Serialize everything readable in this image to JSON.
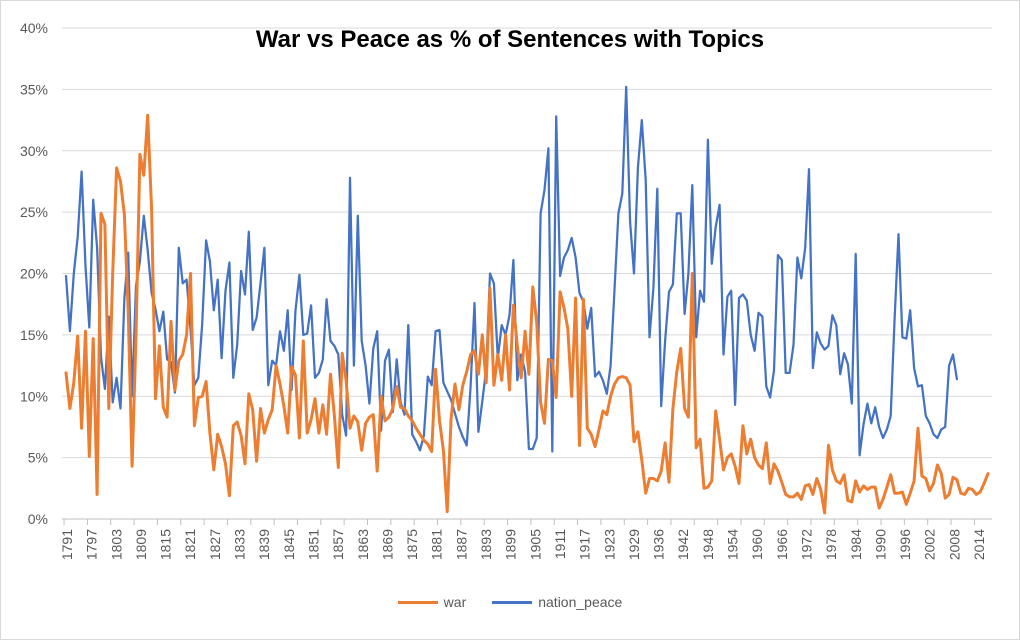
{
  "chart_data": {
    "type": "line",
    "title": "War vs Peace as % of Sentences with Topics",
    "xlabel": "",
    "ylabel": "",
    "ylim": [
      0,
      40
    ],
    "y_ticks": [
      "0%",
      "5%",
      "10%",
      "15%",
      "20%",
      "25%",
      "30%",
      "35%",
      "40%"
    ],
    "x_tick_labels": [
      "1791",
      "1797",
      "1803",
      "1809",
      "1815",
      "1821",
      "1827",
      "1833",
      "1839",
      "1845",
      "1851",
      "1857",
      "1863",
      "1869",
      "1875",
      "1881",
      "1887",
      "1893",
      "1899",
      "1905",
      "1911",
      "1917",
      "1923",
      "1929",
      "1936",
      "1942",
      "1948",
      "1954",
      "1960",
      "1966",
      "1972",
      "1978",
      "1984",
      "1990",
      "1996",
      "2002",
      "2008",
      "2014"
    ],
    "grid": true,
    "legend_position": "bottom",
    "series": [
      {
        "name": "war",
        "color": "#ED7D31",
        "values": [
          11.9,
          9.0,
          11.1,
          14.9,
          7.4,
          15.3,
          5.1,
          14.7,
          2.0,
          24.9,
          24.0,
          9.0,
          20.0,
          28.6,
          27.5,
          24.8,
          17.0,
          4.3,
          14.9,
          29.7,
          28.0,
          32.9,
          25.2,
          9.8,
          14.1,
          9.1,
          8.3,
          16.1,
          10.5,
          12.9,
          13.4,
          15.0,
          20.0,
          7.6,
          9.9,
          10.0,
          11.2,
          7.0,
          4.0,
          6.9,
          5.9,
          4.5,
          1.9,
          7.6,
          7.9,
          6.8,
          4.5,
          10.2,
          8.9,
          4.7,
          9.0,
          7.0,
          8.1,
          8.9,
          12.5,
          11.0,
          9.2,
          7.0,
          12.4,
          11.7,
          6.6,
          14.5,
          7.0,
          8.1,
          9.8,
          7.0,
          9.3,
          6.9,
          11.8,
          8.4,
          4.2,
          13.5,
          11.3,
          7.4,
          8.4,
          7.9,
          5.6,
          7.8,
          8.3,
          8.5,
          3.9,
          10.0,
          8.0,
          8.3,
          9.0,
          10.8,
          9.1,
          9.0,
          8.4,
          8.0,
          7.4,
          6.9,
          6.4,
          6.1,
          5.5,
          12.2,
          8.0,
          5.6,
          0.6,
          8.2,
          11.0,
          8.9,
          10.9,
          12.0,
          13.4,
          13.7,
          11.8,
          15.0,
          11.1,
          18.8,
          10.9,
          13.4,
          11.3,
          15.0,
          10.5,
          17.4,
          14.1,
          11.5,
          15.3,
          11.8,
          18.9,
          16.0,
          9.5,
          7.8,
          13.0,
          12.9,
          9.9,
          18.5,
          17.2,
          15.5,
          10.0,
          18.0,
          6.0,
          17.9,
          7.4,
          6.9,
          5.9,
          7.3,
          8.8,
          8.5,
          10.0,
          11.0,
          11.5,
          11.6,
          11.5,
          10.9,
          6.3,
          7.1,
          4.8,
          2.1,
          3.3,
          3.3,
          3.1,
          3.9,
          6.2,
          3.0,
          9.0,
          12.0,
          13.9,
          9.0,
          8.3,
          20.0,
          5.8,
          6.5,
          2.5,
          2.6,
          3.1,
          8.8,
          6.5,
          4.0,
          5.0,
          5.3,
          4.3,
          2.9,
          7.6,
          5.3,
          6.5,
          5.0,
          4.4,
          4.1,
          6.2,
          2.9,
          4.5,
          3.9,
          3.0,
          2.0,
          1.8,
          1.8,
          2.1,
          1.6,
          2.7,
          2.8,
          2.0,
          3.3,
          2.4,
          0.5,
          6.0,
          4.0,
          3.1,
          2.9,
          3.6,
          1.5,
          1.4,
          3.1,
          2.2,
          2.7,
          2.4,
          2.6,
          2.6,
          0.9,
          1.6,
          2.6,
          3.6,
          2.1,
          2.1,
          2.2,
          1.2,
          2.1,
          3.1,
          7.4,
          3.5,
          3.3,
          2.3,
          2.9,
          4.4,
          3.7,
          1.7,
          2.0,
          3.4,
          3.2,
          2.1,
          2.0,
          2.5,
          2.4,
          2.0,
          2.2,
          2.9,
          3.7
        ]
      },
      {
        "name": "nation_peace",
        "color": "#4472C4",
        "values": [
          19.8,
          15.3,
          20.0,
          23.0,
          28.3,
          20.6,
          15.6,
          26.0,
          22.1,
          13.2,
          10.6,
          16.5,
          9.5,
          11.5,
          9.0,
          18.0,
          21.7,
          10.0,
          19.0,
          21.0,
          24.7,
          21.9,
          18.4,
          17.1,
          15.3,
          16.9,
          13.0,
          12.8,
          10.3,
          22.1,
          19.2,
          19.5,
          15.5,
          10.9,
          11.5,
          15.9,
          22.7,
          21.0,
          17.0,
          19.5,
          13.1,
          18.6,
          20.9,
          11.5,
          14.2,
          20.2,
          18.3,
          23.4,
          15.4,
          16.4,
          19.2,
          22.1,
          10.9,
          12.9,
          12.5,
          15.3,
          13.7,
          17.0,
          10.5,
          17.0,
          19.9,
          15.0,
          15.1,
          17.4,
          11.5,
          11.9,
          13.0,
          17.9,
          14.5,
          14.1,
          13.4,
          8.5,
          6.8,
          27.8,
          12.5,
          24.7,
          14.5,
          12.5,
          9.4,
          13.9,
          15.3,
          7.2,
          12.9,
          13.8,
          8.7,
          13.0,
          9.5,
          8.5,
          15.8,
          6.9,
          6.3,
          5.6,
          6.8,
          11.6,
          10.9,
          15.3,
          15.4,
          11.1,
          10.4,
          9.7,
          8.6,
          7.5,
          6.7,
          6.0,
          10.8,
          17.6,
          7.1,
          9.6,
          12.2,
          20.0,
          19.2,
          13.1,
          15.8,
          15.0,
          16.6,
          21.1,
          11.3,
          13.4,
          12.0,
          5.7,
          5.7,
          6.6,
          24.9,
          26.8,
          30.2,
          5.5,
          32.8,
          19.8,
          21.3,
          21.9,
          22.9,
          21.3,
          18.4,
          17.7,
          15.5,
          17.2,
          11.6,
          12.0,
          11.3,
          10.2,
          12.5,
          18.7,
          24.9,
          26.5,
          35.2,
          24.2,
          20.0,
          28.6,
          32.5,
          27.6,
          14.8,
          18.8,
          26.9,
          9.2,
          14.5,
          18.5,
          19.1,
          24.9,
          24.9,
          16.7,
          20.0,
          27.2,
          14.8,
          18.6,
          17.7,
          30.9,
          20.8,
          23.8,
          25.6,
          13.4,
          18.1,
          18.6,
          9.3,
          18.0,
          18.3,
          17.8,
          15.0,
          13.7,
          16.8,
          16.5,
          10.8,
          9.9,
          12.1,
          21.5,
          21.1,
          11.9,
          11.9,
          14.2,
          21.3,
          19.6,
          22.1,
          28.5,
          12.3,
          15.2,
          14.3,
          13.8,
          14.1,
          16.6,
          15.8,
          11.8,
          13.5,
          12.6,
          9.4,
          21.6,
          5.2,
          7.7,
          9.4,
          7.8,
          9.1,
          7.5,
          6.6,
          7.3,
          8.4,
          16.3,
          23.2,
          14.8,
          14.7,
          17.0,
          12.3,
          10.8,
          10.9,
          8.4,
          7.8,
          6.9,
          6.6,
          7.3,
          7.5,
          12.5,
          13.4,
          11.4
        ]
      }
    ]
  }
}
